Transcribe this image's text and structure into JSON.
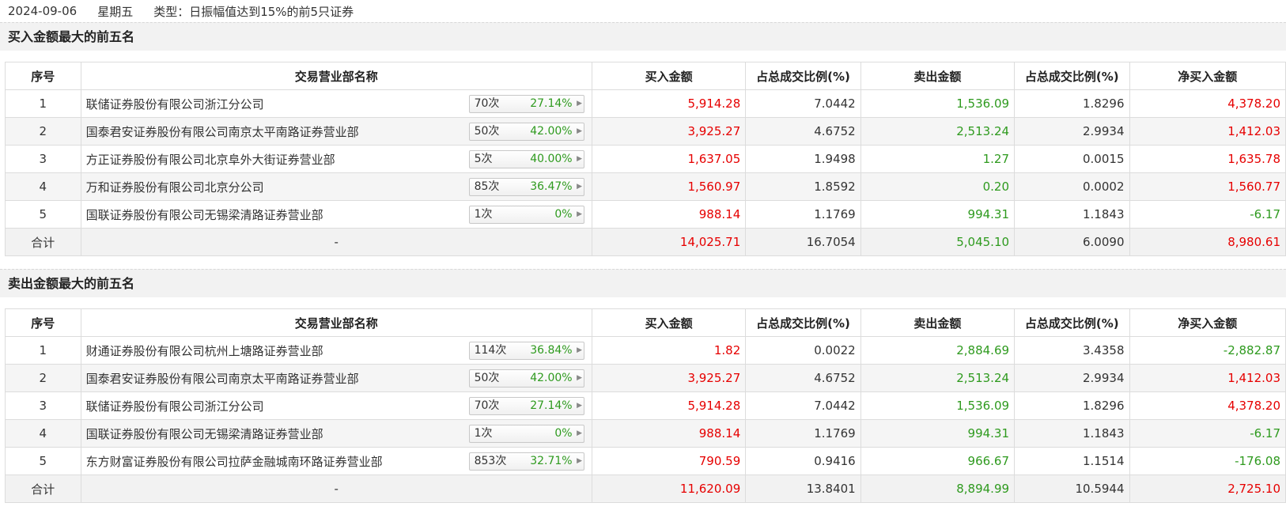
{
  "header": {
    "date": "2024-09-06",
    "weekday": "星期五",
    "type": "类型：日振幅值达到15%的前5只证券"
  },
  "columns": {
    "index": "序号",
    "branch": "交易营业部名称",
    "buy": "买入金额",
    "buy_pct": "占总成交比例(%)",
    "sell": "卖出金额",
    "sell_pct": "占总成交比例(%)",
    "net": "净买入金额"
  },
  "buy_section": {
    "title": "买入金额最大的前五名",
    "rows": [
      {
        "idx": "1",
        "name": "联储证券股份有限公司浙江分公司",
        "count": "70次",
        "rate": "27.14%",
        "buy": "5,914.28",
        "buy_pct": "7.0442",
        "sell": "1,536.09",
        "sell_pct": "1.8296",
        "net": "4,378.20",
        "net_color": "red"
      },
      {
        "idx": "2",
        "name": "国泰君安证券股份有限公司南京太平南路证券营业部",
        "count": "50次",
        "rate": "42.00%",
        "buy": "3,925.27",
        "buy_pct": "4.6752",
        "sell": "2,513.24",
        "sell_pct": "2.9934",
        "net": "1,412.03",
        "net_color": "red"
      },
      {
        "idx": "3",
        "name": "方正证券股份有限公司北京阜外大街证券营业部",
        "count": "5次",
        "rate": "40.00%",
        "buy": "1,637.05",
        "buy_pct": "1.9498",
        "sell": "1.27",
        "sell_pct": "0.0015",
        "net": "1,635.78",
        "net_color": "red"
      },
      {
        "idx": "4",
        "name": "万和证券股份有限公司北京分公司",
        "count": "85次",
        "rate": "36.47%",
        "buy": "1,560.97",
        "buy_pct": "1.8592",
        "sell": "0.20",
        "sell_pct": "0.0002",
        "net": "1,560.77",
        "net_color": "red"
      },
      {
        "idx": "5",
        "name": "国联证券股份有限公司无锡梁清路证券营业部",
        "count": "1次",
        "rate": "0%",
        "buy": "988.14",
        "buy_pct": "1.1769",
        "sell": "994.31",
        "sell_pct": "1.1843",
        "net": "-6.17",
        "net_color": "green"
      }
    ],
    "total": {
      "label": "合计",
      "name": "-",
      "buy": "14,025.71",
      "buy_pct": "16.7054",
      "sell": "5,045.10",
      "sell_pct": "6.0090",
      "net": "8,980.61",
      "net_color": "red"
    }
  },
  "sell_section": {
    "title": "卖出金额最大的前五名",
    "rows": [
      {
        "idx": "1",
        "name": "财通证券股份有限公司杭州上塘路证券营业部",
        "count": "114次",
        "rate": "36.84%",
        "buy": "1.82",
        "buy_pct": "0.0022",
        "sell": "2,884.69",
        "sell_pct": "3.4358",
        "net": "-2,882.87",
        "net_color": "green"
      },
      {
        "idx": "2",
        "name": "国泰君安证券股份有限公司南京太平南路证券营业部",
        "count": "50次",
        "rate": "42.00%",
        "buy": "3,925.27",
        "buy_pct": "4.6752",
        "sell": "2,513.24",
        "sell_pct": "2.9934",
        "net": "1,412.03",
        "net_color": "red"
      },
      {
        "idx": "3",
        "name": "联储证券股份有限公司浙江分公司",
        "count": "70次",
        "rate": "27.14%",
        "buy": "5,914.28",
        "buy_pct": "7.0442",
        "sell": "1,536.09",
        "sell_pct": "1.8296",
        "net": "4,378.20",
        "net_color": "red"
      },
      {
        "idx": "4",
        "name": "国联证券股份有限公司无锡梁清路证券营业部",
        "count": "1次",
        "rate": "0%",
        "buy": "988.14",
        "buy_pct": "1.1769",
        "sell": "994.31",
        "sell_pct": "1.1843",
        "net": "-6.17",
        "net_color": "green"
      },
      {
        "idx": "5",
        "name": "东方财富证券股份有限公司拉萨金融城南环路证券营业部",
        "count": "853次",
        "rate": "32.71%",
        "buy": "790.59",
        "buy_pct": "0.9416",
        "sell": "966.67",
        "sell_pct": "1.1514",
        "net": "-176.08",
        "net_color": "green"
      }
    ],
    "total": {
      "label": "合计",
      "name": "-",
      "buy": "11,620.09",
      "buy_pct": "13.8401",
      "sell": "8,894.99",
      "sell_pct": "10.5944",
      "net": "2,725.10",
      "net_color": "red"
    }
  },
  "colors": {
    "up": "#e60000",
    "down": "#2e9a1e"
  },
  "icons": {
    "badge_arrow": "caret-right-icon"
  }
}
